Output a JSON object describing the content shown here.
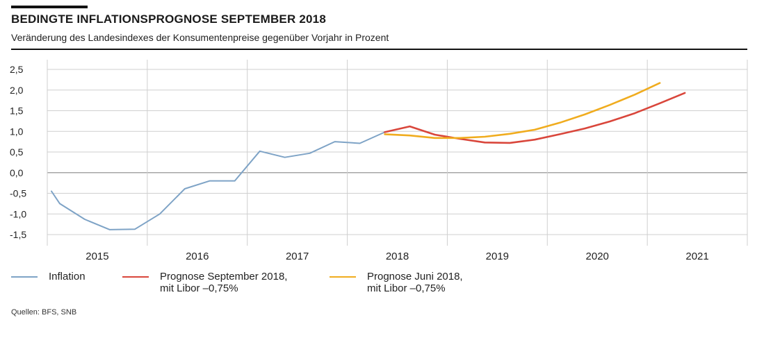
{
  "header": {
    "title": "BEDINGTE INFLATIONSPROGNOSE SEPTEMBER 2018",
    "subtitle": "Veränderung des Landesindexes der Konsumentenpreise gegenüber Vorjahr in Prozent"
  },
  "source": "Quellen: BFS, SNB",
  "legend": [
    {
      "line1": "Inflation",
      "line2": ""
    },
    {
      "line1": "Prognose September 2018,",
      "line2": "mit Libor –0,75%"
    },
    {
      "line1": "Prognose Juni 2018,",
      "line2": "mit Libor –0,75%"
    }
  ],
  "colors": {
    "inflation": "#7ea3c6",
    "sept": "#d9463b",
    "june": "#f0ac1e",
    "grid": "#cfcfcf",
    "zero": "#a6a6a6"
  },
  "chart_data": {
    "type": "line",
    "x_unit": "quarter",
    "xlim": [
      "2015-Q1",
      "2021-Q4"
    ],
    "ylim": [
      -1.5,
      2.5
    ],
    "yticks": [
      2.5,
      2.0,
      1.5,
      1.0,
      0.5,
      0.0,
      -0.5,
      -1.0,
      -1.5
    ],
    "ytick_labels": [
      "2,5",
      "2,0",
      "1,5",
      "1,0",
      "0,5",
      "0,0",
      "-0,5",
      "-1,0",
      "-1,5"
    ],
    "year_labels": [
      "2015",
      "2016",
      "2017",
      "2018",
      "2019",
      "2020",
      "2021"
    ],
    "grid": true,
    "series": [
      {
        "name": "Inflation",
        "color_key": "inflation",
        "points": [
          {
            "x": "2015-01",
            "y": -0.45
          },
          {
            "x": "2015-02",
            "y": -0.75
          },
          {
            "x": "2015-Q2",
            "y": -1.13
          },
          {
            "x": "2015-Q3",
            "y": -1.38
          },
          {
            "x": "2015-Q4",
            "y": -1.37
          },
          {
            "x": "2016-Q1",
            "y": -1.0
          },
          {
            "x": "2016-Q2",
            "y": -0.39
          },
          {
            "x": "2016-Q3",
            "y": -0.2
          },
          {
            "x": "2016-Q4",
            "y": -0.2
          },
          {
            "x": "2017-Q1",
            "y": 0.52
          },
          {
            "x": "2017-Q2",
            "y": 0.37
          },
          {
            "x": "2017-Q3",
            "y": 0.47
          },
          {
            "x": "2017-Q4",
            "y": 0.75
          },
          {
            "x": "2018-Q1",
            "y": 0.71
          },
          {
            "x": "2018-Q2",
            "y": 0.98
          }
        ]
      },
      {
        "name": "Prognose September 2018, mit Libor –0,75%",
        "color_key": "sept",
        "points": [
          {
            "x": "2018-Q2",
            "y": 0.98
          },
          {
            "x": "2018-Q3",
            "y": 1.12
          },
          {
            "x": "2018-Q4",
            "y": 0.92
          },
          {
            "x": "2019-Q1",
            "y": 0.82
          },
          {
            "x": "2019-Q2",
            "y": 0.73
          },
          {
            "x": "2019-Q3",
            "y": 0.72
          },
          {
            "x": "2019-Q4",
            "y": 0.8
          },
          {
            "x": "2020-Q1",
            "y": 0.93
          },
          {
            "x": "2020-Q2",
            "y": 1.07
          },
          {
            "x": "2020-Q3",
            "y": 1.24
          },
          {
            "x": "2020-Q4",
            "y": 1.44
          },
          {
            "x": "2021-Q1",
            "y": 1.68
          },
          {
            "x": "2021-Q2",
            "y": 1.93
          }
        ]
      },
      {
        "name": "Prognose Juni 2018, mit Libor –0,75%",
        "color_key": "june",
        "points": [
          {
            "x": "2018-Q2",
            "y": 0.93
          },
          {
            "x": "2018-Q3",
            "y": 0.9
          },
          {
            "x": "2018-Q4",
            "y": 0.84
          },
          {
            "x": "2019-Q1",
            "y": 0.84
          },
          {
            "x": "2019-Q2",
            "y": 0.87
          },
          {
            "x": "2019-Q3",
            "y": 0.94
          },
          {
            "x": "2019-Q4",
            "y": 1.04
          },
          {
            "x": "2020-Q1",
            "y": 1.21
          },
          {
            "x": "2020-Q2",
            "y": 1.41
          },
          {
            "x": "2020-Q3",
            "y": 1.64
          },
          {
            "x": "2020-Q4",
            "y": 1.89
          },
          {
            "x": "2021-Q1",
            "y": 2.17
          }
        ]
      }
    ]
  }
}
